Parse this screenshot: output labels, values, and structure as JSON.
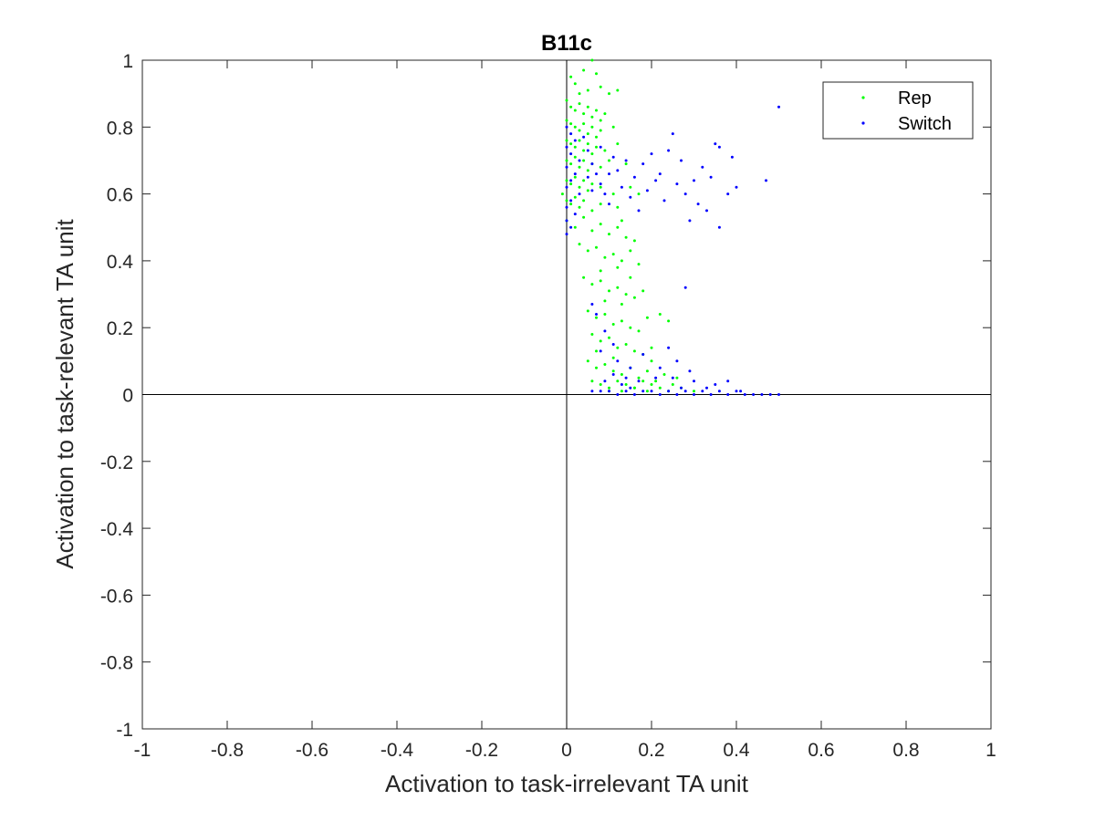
{
  "chart_data": {
    "type": "scatter",
    "title": "B11c",
    "xlabel": "Activation to task-irrelevant TA unit",
    "ylabel": "Activation to task-relevant TA unit",
    "xlim": [
      -1,
      1
    ],
    "ylim": [
      -1,
      1
    ],
    "xticks": [
      -1,
      -0.8,
      -0.6,
      -0.4,
      -0.2,
      0,
      0.2,
      0.4,
      0.6,
      0.8,
      1
    ],
    "yticks": [
      -1,
      -0.8,
      -0.6,
      -0.4,
      -0.2,
      0,
      0.2,
      0.4,
      0.6,
      0.8,
      1
    ],
    "xtick_labels": [
      "-1",
      "-0.8",
      "-0.6",
      "-0.4",
      "-0.2",
      "0",
      "0.2",
      "0.4",
      "0.6",
      "0.8",
      "1"
    ],
    "ytick_labels": [
      "-1",
      "-0.8",
      "-0.6",
      "-0.4",
      "-0.2",
      "0",
      "0.2",
      "0.4",
      "0.6",
      "0.8",
      "1"
    ],
    "grid": false,
    "reference_lines": {
      "x": 0,
      "y": 0
    },
    "legend_position": "top-right",
    "series": [
      {
        "name": "Rep",
        "color": "#00ff00",
        "points": [
          [
            0.01,
            0.95
          ],
          [
            0.02,
            0.93
          ],
          [
            0.04,
            0.97
          ],
          [
            0.06,
            1.0
          ],
          [
            0.07,
            0.96
          ],
          [
            0.03,
            0.9
          ],
          [
            0.05,
            0.91
          ],
          [
            0.08,
            0.92
          ],
          [
            0.1,
            0.9
          ],
          [
            0.12,
            0.91
          ],
          [
            0.0,
            0.88
          ],
          [
            0.01,
            0.86
          ],
          [
            0.02,
            0.85
          ],
          [
            0.03,
            0.87
          ],
          [
            0.04,
            0.84
          ],
          [
            0.05,
            0.86
          ],
          [
            0.06,
            0.83
          ],
          [
            0.07,
            0.85
          ],
          [
            0.08,
            0.82
          ],
          [
            0.09,
            0.84
          ],
          [
            0.0,
            0.82
          ],
          [
            0.01,
            0.81
          ],
          [
            0.02,
            0.8
          ],
          [
            0.03,
            0.79
          ],
          [
            0.04,
            0.81
          ],
          [
            0.05,
            0.78
          ],
          [
            0.06,
            0.8
          ],
          [
            0.07,
            0.77
          ],
          [
            0.08,
            0.79
          ],
          [
            0.11,
            0.8
          ],
          [
            0.0,
            0.76
          ],
          [
            0.01,
            0.75
          ],
          [
            0.02,
            0.74
          ],
          [
            0.03,
            0.76
          ],
          [
            0.04,
            0.73
          ],
          [
            0.05,
            0.75
          ],
          [
            0.06,
            0.72
          ],
          [
            0.07,
            0.74
          ],
          [
            0.09,
            0.73
          ],
          [
            0.12,
            0.75
          ],
          [
            0.0,
            0.7
          ],
          [
            0.01,
            0.69
          ],
          [
            0.02,
            0.71
          ],
          [
            0.03,
            0.68
          ],
          [
            0.04,
            0.7
          ],
          [
            0.05,
            0.67
          ],
          [
            0.06,
            0.69
          ],
          [
            0.08,
            0.68
          ],
          [
            0.1,
            0.7
          ],
          [
            0.14,
            0.69
          ],
          [
            0.0,
            0.64
          ],
          [
            0.01,
            0.63
          ],
          [
            0.02,
            0.65
          ],
          [
            0.03,
            0.62
          ],
          [
            0.04,
            0.64
          ],
          [
            0.05,
            0.61
          ],
          [
            0.06,
            0.63
          ],
          [
            0.08,
            0.62
          ],
          [
            0.11,
            0.6
          ],
          [
            0.15,
            0.62
          ],
          [
            -0.01,
            0.6
          ],
          [
            0.0,
            0.58
          ],
          [
            0.01,
            0.57
          ],
          [
            0.02,
            0.59
          ],
          [
            0.03,
            0.56
          ],
          [
            0.04,
            0.58
          ],
          [
            0.06,
            0.55
          ],
          [
            0.08,
            0.57
          ],
          [
            0.12,
            0.56
          ],
          [
            0.17,
            0.6
          ],
          [
            0.0,
            0.52
          ],
          [
            0.02,
            0.5
          ],
          [
            0.04,
            0.53
          ],
          [
            0.06,
            0.49
          ],
          [
            0.08,
            0.51
          ],
          [
            0.1,
            0.48
          ],
          [
            0.12,
            0.5
          ],
          [
            0.14,
            0.47
          ],
          [
            0.16,
            0.46
          ],
          [
            0.13,
            0.52
          ],
          [
            0.03,
            0.45
          ],
          [
            0.05,
            0.43
          ],
          [
            0.07,
            0.44
          ],
          [
            0.09,
            0.41
          ],
          [
            0.11,
            0.42
          ],
          [
            0.13,
            0.4
          ],
          [
            0.15,
            0.43
          ],
          [
            0.17,
            0.39
          ],
          [
            0.12,
            0.38
          ],
          [
            0.08,
            0.37
          ],
          [
            0.04,
            0.35
          ],
          [
            0.06,
            0.33
          ],
          [
            0.08,
            0.34
          ],
          [
            0.1,
            0.31
          ],
          [
            0.12,
            0.32
          ],
          [
            0.14,
            0.3
          ],
          [
            0.16,
            0.29
          ],
          [
            0.18,
            0.31
          ],
          [
            0.13,
            0.27
          ],
          [
            0.09,
            0.28
          ],
          [
            0.05,
            0.25
          ],
          [
            0.07,
            0.23
          ],
          [
            0.09,
            0.24
          ],
          [
            0.11,
            0.21
          ],
          [
            0.13,
            0.22
          ],
          [
            0.15,
            0.2
          ],
          [
            0.17,
            0.19
          ],
          [
            0.19,
            0.23
          ],
          [
            0.22,
            0.24
          ],
          [
            0.24,
            0.22
          ],
          [
            0.06,
            0.18
          ],
          [
            0.08,
            0.16
          ],
          [
            0.1,
            0.17
          ],
          [
            0.12,
            0.14
          ],
          [
            0.14,
            0.15
          ],
          [
            0.16,
            0.13
          ],
          [
            0.18,
            0.12
          ],
          [
            0.2,
            0.14
          ],
          [
            0.11,
            0.11
          ],
          [
            0.07,
            0.13
          ],
          [
            0.05,
            0.1
          ],
          [
            0.07,
            0.08
          ],
          [
            0.09,
            0.09
          ],
          [
            0.11,
            0.07
          ],
          [
            0.13,
            0.06
          ],
          [
            0.15,
            0.08
          ],
          [
            0.17,
            0.05
          ],
          [
            0.19,
            0.07
          ],
          [
            0.21,
            0.04
          ],
          [
            0.23,
            0.06
          ],
          [
            0.06,
            0.04
          ],
          [
            0.08,
            0.03
          ],
          [
            0.1,
            0.02
          ],
          [
            0.12,
            0.04
          ],
          [
            0.14,
            0.03
          ],
          [
            0.16,
            0.02
          ],
          [
            0.18,
            0.04
          ],
          [
            0.2,
            0.03
          ],
          [
            0.22,
            0.02
          ],
          [
            0.25,
            0.03
          ],
          [
            0.1,
            0.01
          ],
          [
            0.13,
            0.01
          ],
          [
            0.16,
            0.02
          ],
          [
            0.19,
            0.01
          ],
          [
            0.24,
            0.01
          ],
          [
            0.27,
            0.02
          ],
          [
            0.3,
            0.01
          ],
          [
            0.2,
            0.1
          ],
          [
            0.26,
            0.05
          ],
          [
            0.15,
            0.35
          ]
        ]
      },
      {
        "name": "Switch",
        "color": "#0000ff",
        "points": [
          [
            0.5,
            0.86
          ],
          [
            0.39,
            0.71
          ],
          [
            0.47,
            0.64
          ],
          [
            0.35,
            0.75
          ],
          [
            0.36,
            0.74
          ],
          [
            0.32,
            0.68
          ],
          [
            0.34,
            0.65
          ],
          [
            0.38,
            0.6
          ],
          [
            0.4,
            0.62
          ],
          [
            0.3,
            0.64
          ],
          [
            0.25,
            0.78
          ],
          [
            0.24,
            0.73
          ],
          [
            0.27,
            0.7
          ],
          [
            0.22,
            0.66
          ],
          [
            0.26,
            0.63
          ],
          [
            0.28,
            0.6
          ],
          [
            0.31,
            0.57
          ],
          [
            0.33,
            0.55
          ],
          [
            0.29,
            0.52
          ],
          [
            0.36,
            0.5
          ],
          [
            0.2,
            0.72
          ],
          [
            0.18,
            0.69
          ],
          [
            0.21,
            0.64
          ],
          [
            0.19,
            0.61
          ],
          [
            0.23,
            0.58
          ],
          [
            0.17,
            0.55
          ],
          [
            0.16,
            0.65
          ],
          [
            0.14,
            0.7
          ],
          [
            0.13,
            0.62
          ],
          [
            0.15,
            0.59
          ],
          [
            0.0,
            0.8
          ],
          [
            0.01,
            0.78
          ],
          [
            0.02,
            0.76
          ],
          [
            0.0,
            0.74
          ],
          [
            0.01,
            0.72
          ],
          [
            0.03,
            0.7
          ],
          [
            0.0,
            0.68
          ],
          [
            0.02,
            0.66
          ],
          [
            0.01,
            0.64
          ],
          [
            0.0,
            0.62
          ],
          [
            0.03,
            0.6
          ],
          [
            0.01,
            0.58
          ],
          [
            0.0,
            0.56
          ],
          [
            0.02,
            0.54
          ],
          [
            0.0,
            0.52
          ],
          [
            0.01,
            0.5
          ],
          [
            0.0,
            0.48
          ],
          [
            0.04,
            0.77
          ],
          [
            0.05,
            0.73
          ],
          [
            0.06,
            0.69
          ],
          [
            0.07,
            0.66
          ],
          [
            0.08,
            0.63
          ],
          [
            0.09,
            0.6
          ],
          [
            0.1,
            0.57
          ],
          [
            0.11,
            0.71
          ],
          [
            0.12,
            0.67
          ],
          [
            0.05,
            0.65
          ],
          [
            0.06,
            0.61
          ],
          [
            0.08,
            0.74
          ],
          [
            0.1,
            0.66
          ],
          [
            0.06,
            0.27
          ],
          [
            0.07,
            0.24
          ],
          [
            0.09,
            0.19
          ],
          [
            0.11,
            0.15
          ],
          [
            0.08,
            0.13
          ],
          [
            0.12,
            0.1
          ],
          [
            0.15,
            0.08
          ],
          [
            0.18,
            0.12
          ],
          [
            0.22,
            0.08
          ],
          [
            0.28,
            0.32
          ],
          [
            0.24,
            0.14
          ],
          [
            0.26,
            0.1
          ],
          [
            0.29,
            0.07
          ],
          [
            0.21,
            0.05
          ],
          [
            0.17,
            0.04
          ],
          [
            0.14,
            0.05
          ],
          [
            0.11,
            0.06
          ],
          [
            0.09,
            0.04
          ],
          [
            0.25,
            0.05
          ],
          [
            0.3,
            0.04
          ],
          [
            0.06,
            0.01
          ],
          [
            0.08,
            0.01
          ],
          [
            0.1,
            0.01
          ],
          [
            0.12,
            0.0
          ],
          [
            0.14,
            0.01
          ],
          [
            0.16,
            0.0
          ],
          [
            0.18,
            0.01
          ],
          [
            0.2,
            0.01
          ],
          [
            0.22,
            0.0
          ],
          [
            0.24,
            0.01
          ],
          [
            0.26,
            0.0
          ],
          [
            0.28,
            0.01
          ],
          [
            0.3,
            0.0
          ],
          [
            0.32,
            0.01
          ],
          [
            0.34,
            0.0
          ],
          [
            0.36,
            0.01
          ],
          [
            0.38,
            0.0
          ],
          [
            0.4,
            0.01
          ],
          [
            0.42,
            0.0
          ],
          [
            0.44,
            0.0
          ],
          [
            0.46,
            0.0
          ],
          [
            0.48,
            0.0
          ],
          [
            0.5,
            0.0
          ],
          [
            0.35,
            0.03
          ],
          [
            0.38,
            0.04
          ],
          [
            0.41,
            0.01
          ],
          [
            0.33,
            0.02
          ],
          [
            0.27,
            0.02
          ],
          [
            0.15,
            0.02
          ],
          [
            0.13,
            0.03
          ]
        ]
      }
    ]
  }
}
